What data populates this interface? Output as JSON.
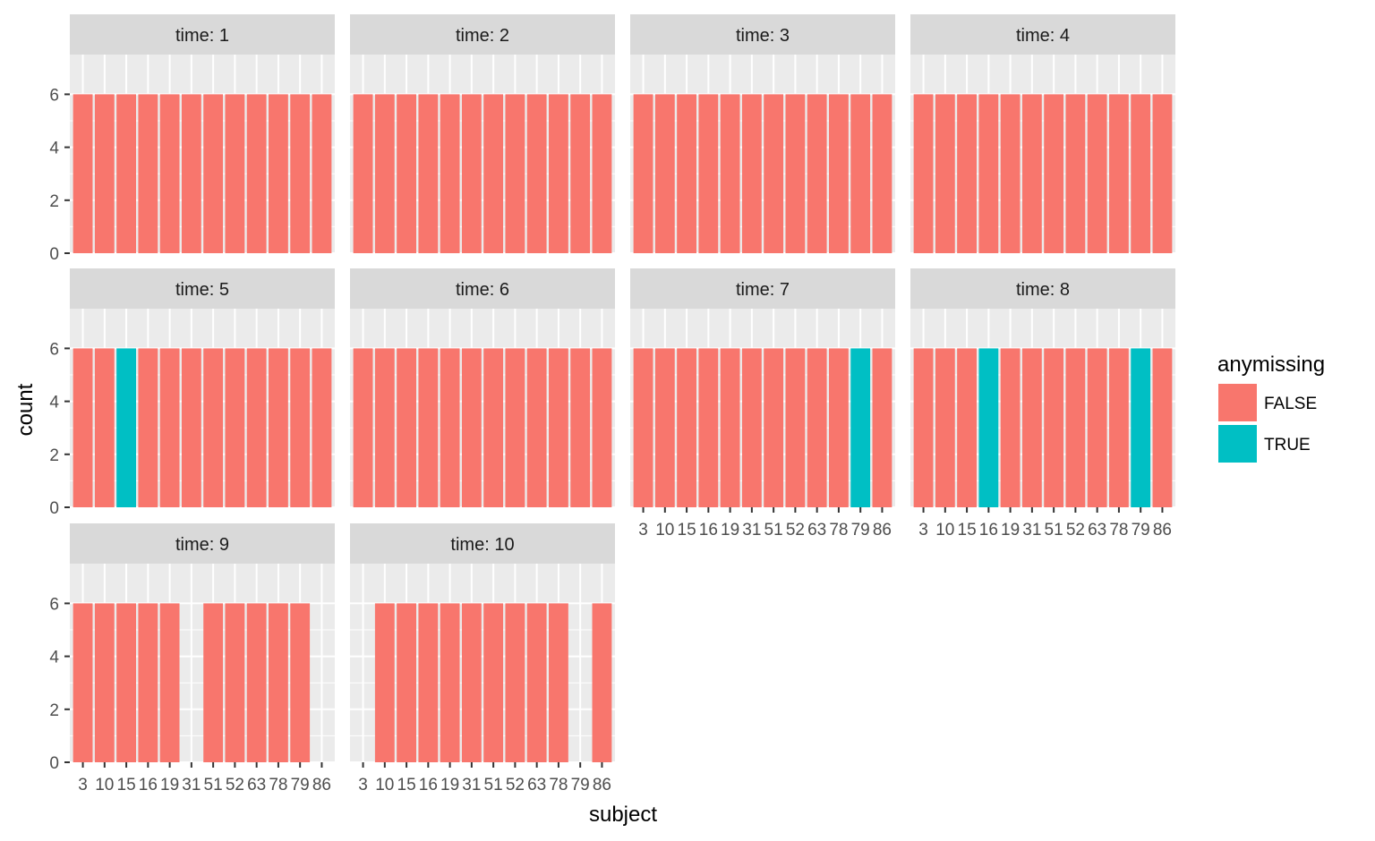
{
  "chart_data": {
    "type": "bar",
    "title": "",
    "xlabel": "subject",
    "ylabel": "count",
    "ylim": [
      0,
      7.5
    ],
    "y_ticks": [
      0,
      2,
      4,
      6
    ],
    "facet_prefix": "time: ",
    "categories": [
      "3",
      "10",
      "15",
      "16",
      "19",
      "31",
      "51",
      "52",
      "63",
      "78",
      "79",
      "86"
    ],
    "x_tick_labels": [
      "3",
      "10",
      "15",
      "16",
      "19",
      "31",
      "51",
      "52",
      "63",
      "78",
      "79",
      "86"
    ],
    "legend": {
      "title": "anymissing",
      "position": "right",
      "entries": [
        {
          "label": "FALSE",
          "color": "#F8766D"
        },
        {
          "label": "TRUE",
          "color": "#00BFC4"
        }
      ]
    },
    "colors": {
      "FALSE": "#F8766D",
      "TRUE": "#00BFC4"
    },
    "panel_background": "#EBEBEB",
    "strip_background": "#D9D9D9",
    "grid": true,
    "panels": [
      {
        "time": "1",
        "values": [
          6,
          6,
          6,
          6,
          6,
          6,
          6,
          6,
          6,
          6,
          6,
          6
        ],
        "anymissing": [
          "FALSE",
          "FALSE",
          "FALSE",
          "FALSE",
          "FALSE",
          "FALSE",
          "FALSE",
          "FALSE",
          "FALSE",
          "FALSE",
          "FALSE",
          "FALSE"
        ]
      },
      {
        "time": "2",
        "values": [
          6,
          6,
          6,
          6,
          6,
          6,
          6,
          6,
          6,
          6,
          6,
          6
        ],
        "anymissing": [
          "FALSE",
          "FALSE",
          "FALSE",
          "FALSE",
          "FALSE",
          "FALSE",
          "FALSE",
          "FALSE",
          "FALSE",
          "FALSE",
          "FALSE",
          "FALSE"
        ]
      },
      {
        "time": "3",
        "values": [
          6,
          6,
          6,
          6,
          6,
          6,
          6,
          6,
          6,
          6,
          6,
          6
        ],
        "anymissing": [
          "FALSE",
          "FALSE",
          "FALSE",
          "FALSE",
          "FALSE",
          "FALSE",
          "FALSE",
          "FALSE",
          "FALSE",
          "FALSE",
          "FALSE",
          "FALSE"
        ]
      },
      {
        "time": "4",
        "values": [
          6,
          6,
          6,
          6,
          6,
          6,
          6,
          6,
          6,
          6,
          6,
          6
        ],
        "anymissing": [
          "FALSE",
          "FALSE",
          "FALSE",
          "FALSE",
          "FALSE",
          "FALSE",
          "FALSE",
          "FALSE",
          "FALSE",
          "FALSE",
          "FALSE",
          "FALSE"
        ]
      },
      {
        "time": "5",
        "values": [
          6,
          6,
          6,
          6,
          6,
          6,
          6,
          6,
          6,
          6,
          6,
          6
        ],
        "anymissing": [
          "FALSE",
          "FALSE",
          "TRUE",
          "FALSE",
          "FALSE",
          "FALSE",
          "FALSE",
          "FALSE",
          "FALSE",
          "FALSE",
          "FALSE",
          "FALSE"
        ]
      },
      {
        "time": "6",
        "values": [
          6,
          6,
          6,
          6,
          6,
          6,
          6,
          6,
          6,
          6,
          6,
          6
        ],
        "anymissing": [
          "FALSE",
          "FALSE",
          "FALSE",
          "FALSE",
          "FALSE",
          "FALSE",
          "FALSE",
          "FALSE",
          "FALSE",
          "FALSE",
          "FALSE",
          "FALSE"
        ]
      },
      {
        "time": "7",
        "values": [
          6,
          6,
          6,
          6,
          6,
          6,
          6,
          6,
          6,
          6,
          6,
          6
        ],
        "anymissing": [
          "FALSE",
          "FALSE",
          "FALSE",
          "FALSE",
          "FALSE",
          "FALSE",
          "FALSE",
          "FALSE",
          "FALSE",
          "FALSE",
          "TRUE",
          "FALSE"
        ]
      },
      {
        "time": "8",
        "values": [
          6,
          6,
          6,
          6,
          6,
          6,
          6,
          6,
          6,
          6,
          6,
          6
        ],
        "anymissing": [
          "FALSE",
          "FALSE",
          "FALSE",
          "TRUE",
          "FALSE",
          "FALSE",
          "FALSE",
          "FALSE",
          "FALSE",
          "FALSE",
          "TRUE",
          "FALSE"
        ]
      },
      {
        "time": "9",
        "values": [
          6,
          6,
          6,
          6,
          6,
          0,
          6,
          6,
          6,
          6,
          6,
          0
        ],
        "anymissing": [
          "FALSE",
          "FALSE",
          "FALSE",
          "FALSE",
          "FALSE",
          "FALSE",
          "FALSE",
          "FALSE",
          "FALSE",
          "FALSE",
          "FALSE",
          "FALSE"
        ]
      },
      {
        "time": "10",
        "values": [
          0,
          6,
          6,
          6,
          6,
          6,
          6,
          6,
          6,
          6,
          0,
          6
        ],
        "anymissing": [
          "FALSE",
          "FALSE",
          "FALSE",
          "FALSE",
          "FALSE",
          "FALSE",
          "FALSE",
          "FALSE",
          "FALSE",
          "FALSE",
          "FALSE",
          "FALSE"
        ]
      }
    ]
  }
}
